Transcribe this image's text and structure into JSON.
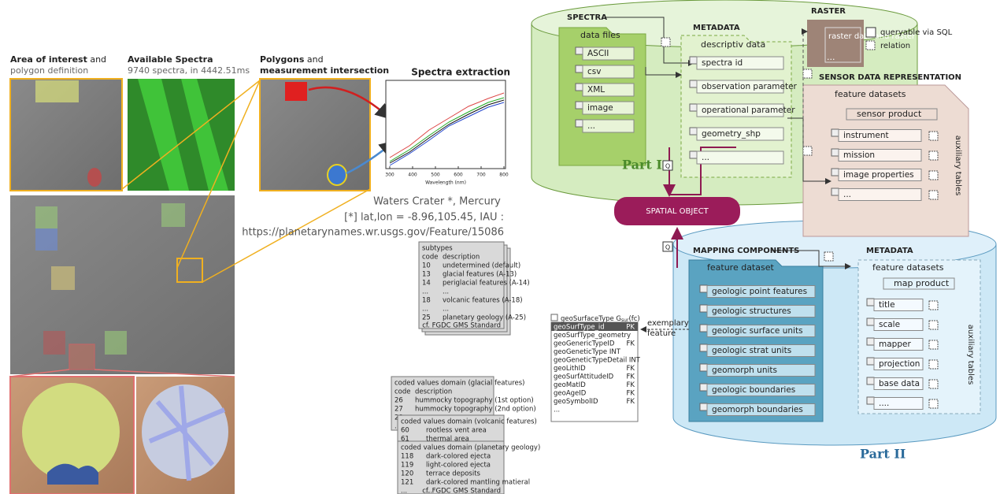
{
  "panels": [
    {
      "title_bold": "Area of interest",
      "title_rest": "and",
      "subtitle": "polygon definition"
    },
    {
      "title_bold": "Available Spectra",
      "subtitle": "9740 spectra, in 4442.51ms"
    },
    {
      "title_bold": "Polygons",
      "title_rest": "and",
      "subtitle": "measurement intersection"
    },
    {
      "title_bold": "Spectra extraction"
    }
  ],
  "spectra_plot": {
    "x_label": "Wavelength (nm)",
    "xticks": [
      300,
      400,
      500,
      600,
      700,
      800
    ]
  },
  "caption": {
    "name": "Waters Crater *, Mercury",
    "coords": "[*] lat,lon = -8.96,105.45, IAU :",
    "url": "https://planetarynames.wr.usgs.gov/Feature/15086"
  },
  "subtypes": {
    "title": "subtypes",
    "columns": [
      "code",
      "description"
    ],
    "rows": [
      [
        "10",
        "undetermined (default)"
      ],
      [
        "13",
        "glacial features (A-13)"
      ],
      [
        "14",
        "periglacial features (A-14)"
      ],
      [
        "...",
        "..."
      ],
      [
        "18",
        "volcanic features (A-18)"
      ],
      [
        "...",
        "..."
      ],
      [
        "25",
        "planetary geology (A-25)"
      ]
    ],
    "footer": "cf. FGDC GMS Standard"
  },
  "coded_domains": [
    {
      "title": "coded values domain (glacial features)",
      "columns": [
        "code",
        "description"
      ],
      "rows": [
        [
          "26",
          "hummocky topography (1st option)"
        ],
        [
          "27",
          "hummocky topography (2nd option)"
        ],
        [
          "28",
          "..."
        ],
        [
          "...",
          "..."
        ]
      ]
    },
    {
      "title": "coded values domain (volcanic features)",
      "rows": [
        [
          "60",
          "rootless vent area"
        ],
        [
          "61",
          "thermal area"
        ]
      ]
    },
    {
      "title": "coded values domain (planetary geology)",
      "rows": [
        [
          "118",
          "dark-colored ejecta"
        ],
        [
          "119",
          "light-colored ejecta"
        ],
        [
          "120",
          "terrace deposits"
        ],
        [
          "121",
          "dark-colored mantling matieral"
        ],
        [
          "...",
          "..."
        ]
      ],
      "footer": "cf. FGDC GMS Standard"
    }
  ],
  "geo_surface_type": {
    "title": "geoSurfaceType G",
    "subscript": "sur",
    "suffix": "(fc)",
    "rows": [
      [
        "geoSurfType_id",
        "PK"
      ],
      [
        "geoSurfType_geometry",
        ""
      ],
      [
        "geoGenericTypeID",
        "FK"
      ],
      [
        "geoGeneticType INT",
        ""
      ],
      [
        "geoGeneticTypeDetail INT",
        ""
      ],
      [
        "geoLithID",
        "FK"
      ],
      [
        "geoSurfAttitudeID",
        "FK"
      ],
      [
        "geoMatID",
        "FK"
      ],
      [
        "geoAgeID",
        "FK"
      ],
      [
        "geoSymbolID",
        "FK"
      ],
      [
        "...",
        ""
      ]
    ]
  },
  "exemplary": [
    "exemplary",
    "feature"
  ],
  "part1": {
    "label": "Part I",
    "spectra_title": "SPECTRA",
    "data_files": "data files",
    "files": [
      "ASCII",
      "csv",
      "XML",
      "image",
      "..."
    ],
    "metadata_title": "METADATA",
    "descriptive": "descriptiv data",
    "fields": [
      "spectra id",
      "observation parameter",
      "operational parameter",
      "geometry_shp",
      "..."
    ]
  },
  "q": "Q",
  "spatial_object": "SPATIAL OBJECT",
  "raster": {
    "title": "RASTER",
    "item": "raster data and raster catalogs",
    "more": "..."
  },
  "legend": [
    {
      "symbol": "Q",
      "text": "queryable via SQL"
    },
    {
      "text": "relation"
    }
  ],
  "sensor": {
    "title": "SENSOR DATA REPRESENTATION",
    "datasets": "feature datasets",
    "product": "sensor product",
    "tables": [
      "instrument",
      "mission",
      "image properties",
      "..."
    ],
    "aux": "auxiliary tables"
  },
  "part2": {
    "label": "Part II",
    "mapping_title": "MAPPING COMPONENTS",
    "dataset": "feature dataset",
    "features": [
      "geologic point features",
      "geologic structures",
      "geologic surface units",
      "geologic strat units",
      "geomorph units",
      "geologic boundaries",
      "geomorph boundaries"
    ],
    "metadata_title": "METADATA",
    "datasets": "feature datasets",
    "product": "map product",
    "tables": [
      "title",
      "scale",
      "mapper",
      "projection",
      "base data",
      "...."
    ],
    "aux": "auxiliary tables"
  }
}
